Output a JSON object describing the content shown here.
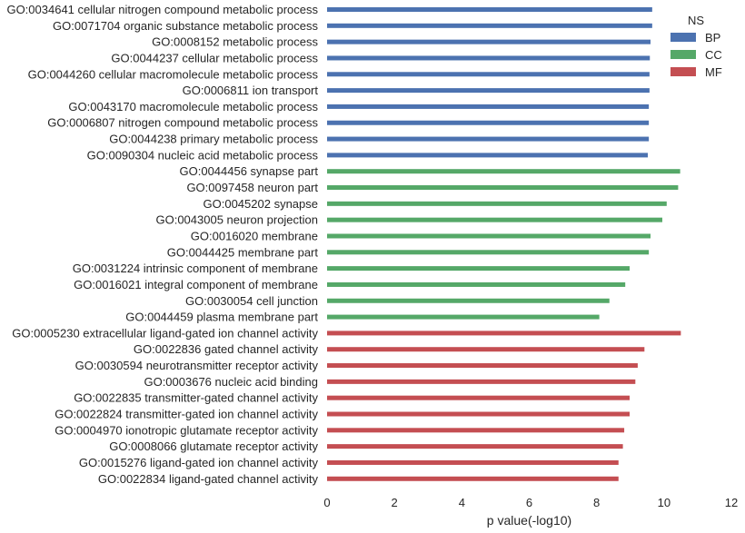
{
  "chart_data": {
    "type": "bar",
    "orientation": "horizontal",
    "xlabel": "p value(-log10)",
    "xlim": [
      0,
      12
    ],
    "xticks": [
      0,
      2,
      4,
      6,
      8,
      10,
      12
    ],
    "grid": false,
    "legend": {
      "title": "NS",
      "placement": "top-right",
      "entries": [
        {
          "name": "BP",
          "color": "#4c72b0"
        },
        {
          "name": "CC",
          "color": "#55a868"
        },
        {
          "name": "MF",
          "color": "#c44e52"
        }
      ]
    },
    "bars": [
      {
        "label": "GO:0034641 cellular nitrogen compound metabolic process",
        "value": 9.65,
        "ns": "BP"
      },
      {
        "label": "GO:0071704 organic substance metabolic process",
        "value": 9.65,
        "ns": "BP"
      },
      {
        "label": "GO:0008152 metabolic process",
        "value": 9.6,
        "ns": "BP"
      },
      {
        "label": "GO:0044237 cellular metabolic process",
        "value": 9.58,
        "ns": "BP"
      },
      {
        "label": "GO:0044260 cellular macromolecule metabolic process",
        "value": 9.57,
        "ns": "BP"
      },
      {
        "label": "GO:0006811 ion transport",
        "value": 9.57,
        "ns": "BP"
      },
      {
        "label": "GO:0043170 macromolecule metabolic process",
        "value": 9.55,
        "ns": "BP"
      },
      {
        "label": "GO:0006807 nitrogen compound metabolic process",
        "value": 9.55,
        "ns": "BP"
      },
      {
        "label": "GO:0044238 primary metabolic process",
        "value": 9.55,
        "ns": "BP"
      },
      {
        "label": "GO:0090304 nucleic acid metabolic process",
        "value": 9.52,
        "ns": "BP"
      },
      {
        "label": "GO:0044456 synapse part",
        "value": 10.48,
        "ns": "CC"
      },
      {
        "label": "GO:0097458 neuron part",
        "value": 10.42,
        "ns": "CC"
      },
      {
        "label": "GO:0045202 synapse",
        "value": 10.08,
        "ns": "CC"
      },
      {
        "label": "GO:0043005 neuron projection",
        "value": 9.95,
        "ns": "CC"
      },
      {
        "label": "GO:0016020 membrane",
        "value": 9.6,
        "ns": "CC"
      },
      {
        "label": "GO:0044425 membrane part",
        "value": 9.55,
        "ns": "CC"
      },
      {
        "label": "GO:0031224 intrinsic component of membrane",
        "value": 8.98,
        "ns": "CC"
      },
      {
        "label": "GO:0016021 integral component of membrane",
        "value": 8.85,
        "ns": "CC"
      },
      {
        "label": "GO:0030054 cell junction",
        "value": 8.38,
        "ns": "CC"
      },
      {
        "label": "GO:0044459 plasma membrane part",
        "value": 8.08,
        "ns": "CC"
      },
      {
        "label": "GO:0005230 extracellular ligand-gated ion channel activity",
        "value": 10.5,
        "ns": "MF"
      },
      {
        "label": "GO:0022836 gated channel activity",
        "value": 9.42,
        "ns": "MF"
      },
      {
        "label": "GO:0030594 neurotransmitter receptor activity",
        "value": 9.22,
        "ns": "MF"
      },
      {
        "label": "GO:0003676 nucleic acid binding",
        "value": 9.15,
        "ns": "MF"
      },
      {
        "label": "GO:0022835 transmitter-gated channel activity",
        "value": 8.98,
        "ns": "MF"
      },
      {
        "label": "GO:0022824 transmitter-gated ion channel activity",
        "value": 8.98,
        "ns": "MF"
      },
      {
        "label": "GO:0004970 ionotropic glutamate receptor activity",
        "value": 8.82,
        "ns": "MF"
      },
      {
        "label": "GO:0008066 glutamate receptor activity",
        "value": 8.78,
        "ns": "MF"
      },
      {
        "label": "GO:0015276 ligand-gated ion channel activity",
        "value": 8.65,
        "ns": "MF"
      },
      {
        "label": "GO:0022834 ligand-gated channel activity",
        "value": 8.65,
        "ns": "MF"
      }
    ]
  }
}
